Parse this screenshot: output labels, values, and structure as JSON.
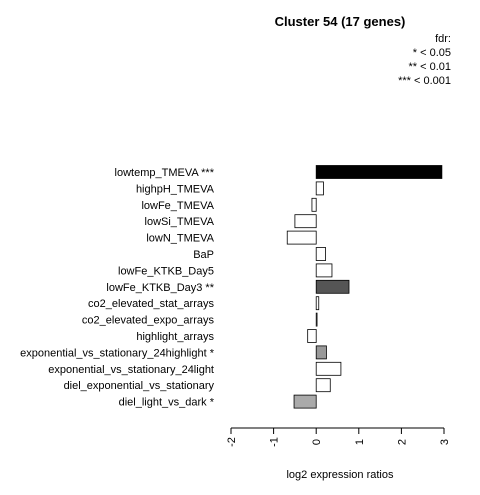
{
  "chart_data": {
    "type": "bar",
    "orientation": "horizontal",
    "title": "Cluster 54 (17 genes)",
    "xlabel": "log2 expression ratios",
    "ylabel": "",
    "xlim": [
      -2,
      3
    ],
    "xticks": [
      "-2",
      "-1",
      "0",
      "1",
      "2",
      "3"
    ],
    "legend": {
      "title": "fdr:",
      "entries": [
        "* < 0.05",
        "** < 0.01",
        "*** < 0.001"
      ],
      "placement": "top-right"
    },
    "categories": [
      "lowtemp_TMEVA ***",
      "highpH_TMEVA",
      "lowFe_TMEVA",
      "lowSi_TMEVA",
      "lowN_TMEVA",
      "BaP",
      "lowFe_KTKB_Day5",
      "lowFe_KTKB_Day3 **",
      "co2_elevated_stat_arrays",
      "co2_elevated_expo_arrays",
      "highlight_arrays",
      "exponential_vs_stationary_24highlight *",
      "exponential_vs_stationary_24light",
      "diel_exponential_vs_stationary",
      "diel_light_vs_dark *"
    ],
    "values": [
      2.95,
      0.17,
      -0.1,
      -0.5,
      -0.68,
      0.22,
      0.37,
      0.77,
      0.06,
      0.02,
      -0.2,
      0.24,
      0.58,
      0.33,
      -0.52
    ],
    "bar_colors": [
      "#000000",
      "#ffffff",
      "#ffffff",
      "#ffffff",
      "#ffffff",
      "#ffffff",
      "#ffffff",
      "#555555",
      "#ffffff",
      "#ffffff",
      "#ffffff",
      "#999999",
      "#ffffff",
      "#ffffff",
      "#aaaaaa"
    ]
  }
}
